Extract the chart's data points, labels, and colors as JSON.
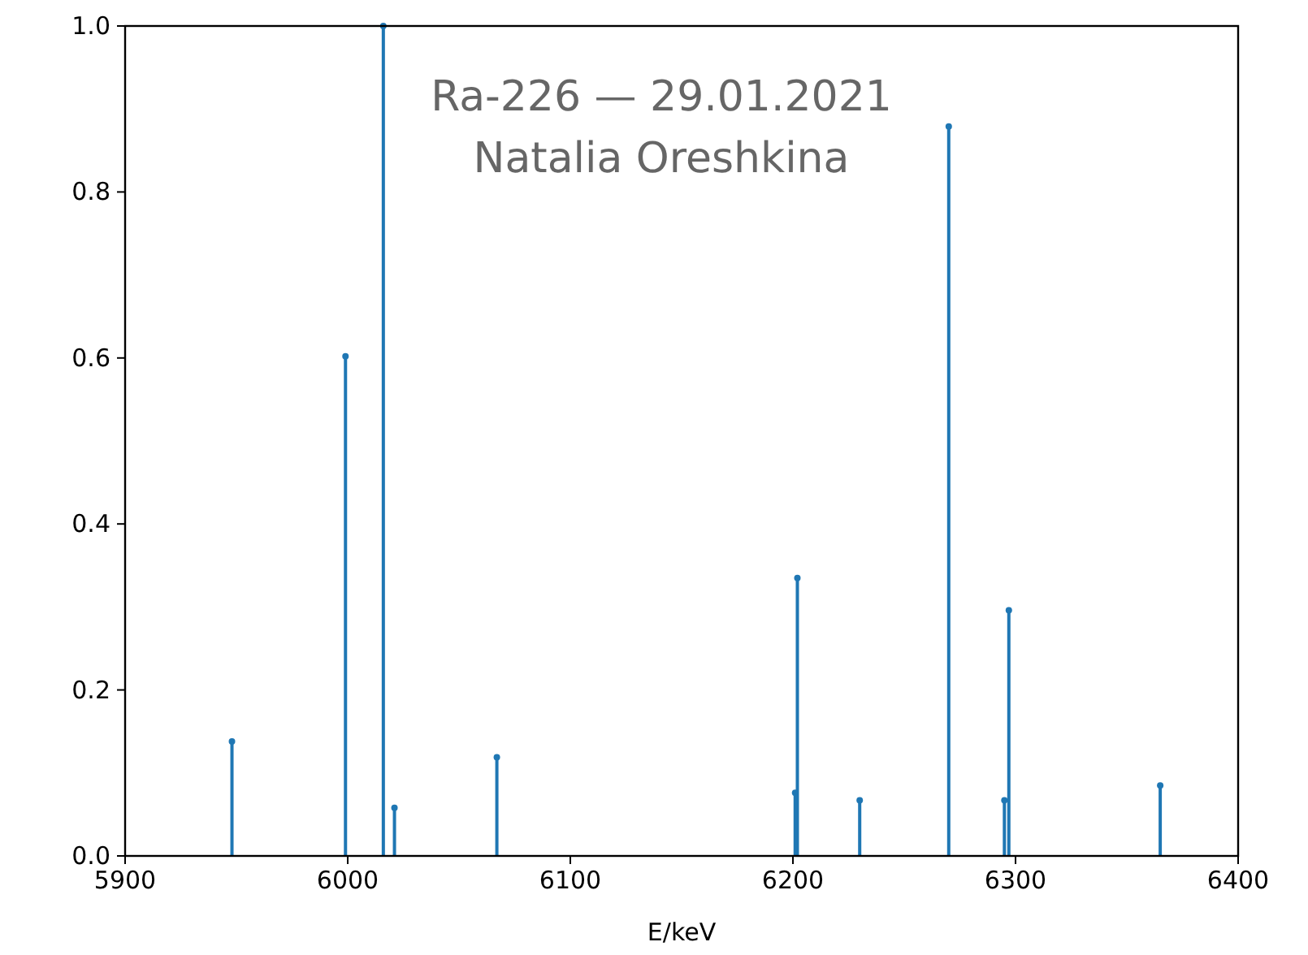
{
  "chart_data": {
    "type": "lollipop",
    "title": "Ra-226 — 29.01.2021",
    "subtitle": "Natalia Oreshkina",
    "xlabel": "E/keV",
    "x": [
      5948,
      5999,
      6016,
      6021,
      6067,
      6201,
      6202,
      6230,
      6270,
      6295,
      6297,
      6365
    ],
    "values": [
      0.138,
      0.602,
      1.0,
      0.058,
      0.119,
      0.076,
      0.335,
      0.067,
      0.879,
      0.067,
      0.296,
      0.085
    ],
    "color": "#1f77b4",
    "marker": "circle",
    "xlim": [
      5900,
      6400
    ],
    "xticks": [
      5900,
      6000,
      6100,
      6200,
      6300,
      6400
    ],
    "ylim": [
      0,
      1
    ],
    "yticks": [
      {
        "value": 0,
        "label": "0.0"
      },
      0.2,
      0.4,
      0.6,
      0.8,
      {
        "value": 1,
        "label": "1.0"
      }
    ],
    "grid": false
  }
}
